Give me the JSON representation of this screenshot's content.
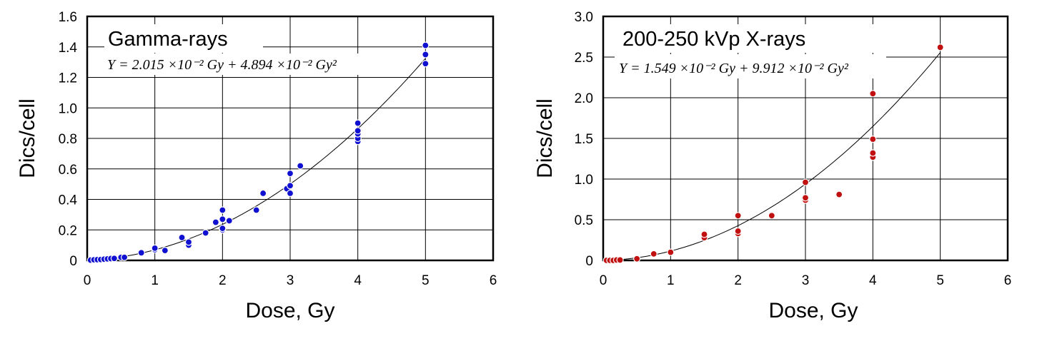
{
  "chart_data": [
    {
      "type": "scatter",
      "title": "Gamma-rays",
      "equation": "Y = 2.015 ×10⁻² Gy + 4.894 ×10⁻² Gy²",
      "xlabel": "Dose, Gy",
      "ylabel": "Dics/cell",
      "xlim": [
        0,
        6
      ],
      "ylim": [
        0,
        1.6
      ],
      "x_ticks": [
        "0",
        "1",
        "2",
        "3",
        "4",
        "5",
        "6"
      ],
      "y_ticks": [
        "0",
        "0.2",
        "0.4",
        "0.6",
        "0.8",
        "1.0",
        "1.2",
        "1.4",
        "1.6"
      ],
      "grid": true,
      "fit": {
        "linear": 0.02015,
        "quadratic": 0.04894
      },
      "color": "#1010d0",
      "points": [
        {
          "x": 0.05,
          "y": 0.002
        },
        {
          "x": 0.1,
          "y": 0.004
        },
        {
          "x": 0.15,
          "y": 0.005
        },
        {
          "x": 0.2,
          "y": 0.006
        },
        {
          "x": 0.25,
          "y": 0.008
        },
        {
          "x": 0.3,
          "y": 0.01
        },
        {
          "x": 0.35,
          "y": 0.012
        },
        {
          "x": 0.4,
          "y": 0.013
        },
        {
          "x": 0.5,
          "y": 0.02
        },
        {
          "x": 0.55,
          "y": 0.02
        },
        {
          "x": 0.8,
          "y": 0.05
        },
        {
          "x": 1.0,
          "y": 0.07
        },
        {
          "x": 1.0,
          "y": 0.08
        },
        {
          "x": 1.15,
          "y": 0.065
        },
        {
          "x": 1.4,
          "y": 0.15
        },
        {
          "x": 1.5,
          "y": 0.1
        },
        {
          "x": 1.5,
          "y": 0.12
        },
        {
          "x": 1.75,
          "y": 0.18
        },
        {
          "x": 1.9,
          "y": 0.25
        },
        {
          "x": 2.0,
          "y": 0.2
        },
        {
          "x": 2.0,
          "y": 0.21
        },
        {
          "x": 2.0,
          "y": 0.27
        },
        {
          "x": 2.0,
          "y": 0.33
        },
        {
          "x": 2.1,
          "y": 0.26
        },
        {
          "x": 2.5,
          "y": 0.33
        },
        {
          "x": 2.6,
          "y": 0.44
        },
        {
          "x": 2.95,
          "y": 0.47
        },
        {
          "x": 3.0,
          "y": 0.44
        },
        {
          "x": 3.0,
          "y": 0.49
        },
        {
          "x": 3.0,
          "y": 0.57
        },
        {
          "x": 3.15,
          "y": 0.62
        },
        {
          "x": 4.0,
          "y": 0.78
        },
        {
          "x": 4.0,
          "y": 0.8
        },
        {
          "x": 4.0,
          "y": 0.83
        },
        {
          "x": 4.0,
          "y": 0.85
        },
        {
          "x": 4.0,
          "y": 0.9
        },
        {
          "x": 5.0,
          "y": 1.29
        },
        {
          "x": 5.0,
          "y": 1.35
        },
        {
          "x": 5.0,
          "y": 1.41
        }
      ]
    },
    {
      "type": "scatter",
      "title": "200-250 kVp X-rays",
      "equation": "Y = 1.549 ×10⁻² Gy + 9.912 ×10⁻² Gy²",
      "xlabel": "Dose, Gy",
      "ylabel": "Dics/cell",
      "xlim": [
        0,
        6
      ],
      "ylim": [
        0,
        3.0
      ],
      "x_ticks": [
        "0",
        "1",
        "2",
        "3",
        "4",
        "5",
        "6"
      ],
      "y_ticks": [
        "0",
        "0.5",
        "1.0",
        "1.5",
        "2.0",
        "2.5",
        "3.0"
      ],
      "grid": true,
      "fit": {
        "linear": 0.01549,
        "quadratic": 0.09912
      },
      "color": "#c01010",
      "points": [
        {
          "x": 0.05,
          "y": 0.0
        },
        {
          "x": 0.1,
          "y": 0.0
        },
        {
          "x": 0.15,
          "y": 0.0
        },
        {
          "x": 0.2,
          "y": 0.005
        },
        {
          "x": 0.25,
          "y": 0.005
        },
        {
          "x": 0.5,
          "y": 0.02
        },
        {
          "x": 0.75,
          "y": 0.08
        },
        {
          "x": 1.0,
          "y": 0.1
        },
        {
          "x": 1.5,
          "y": 0.28
        },
        {
          "x": 1.5,
          "y": 0.32
        },
        {
          "x": 2.0,
          "y": 0.33
        },
        {
          "x": 2.0,
          "y": 0.36
        },
        {
          "x": 2.0,
          "y": 0.55
        },
        {
          "x": 2.5,
          "y": 0.55
        },
        {
          "x": 3.0,
          "y": 0.74
        },
        {
          "x": 3.0,
          "y": 0.77
        },
        {
          "x": 3.0,
          "y": 0.96
        },
        {
          "x": 3.5,
          "y": 0.81
        },
        {
          "x": 4.0,
          "y": 1.27
        },
        {
          "x": 4.0,
          "y": 1.32
        },
        {
          "x": 4.0,
          "y": 1.49
        },
        {
          "x": 4.0,
          "y": 2.05
        },
        {
          "x": 5.0,
          "y": 2.62
        }
      ]
    }
  ]
}
